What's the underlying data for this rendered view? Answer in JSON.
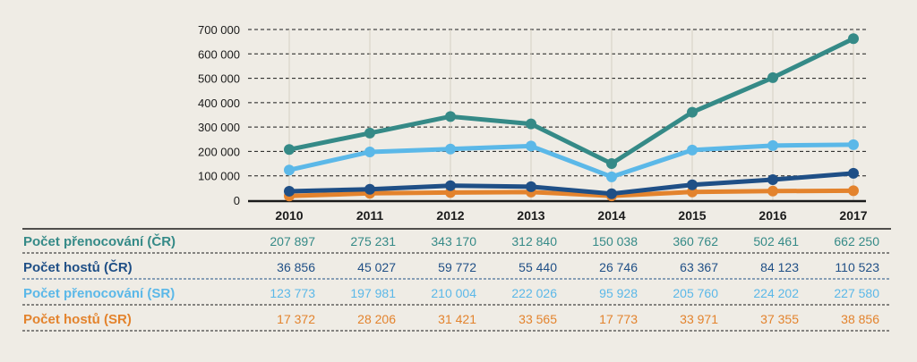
{
  "chart_data": {
    "type": "line",
    "title": "",
    "xlabel": "",
    "ylabel": "",
    "ylim": [
      0,
      700000
    ],
    "yticks": [
      0,
      100000,
      200000,
      300000,
      400000,
      500000,
      600000,
      700000
    ],
    "ytick_labels": [
      "0",
      "100 000",
      "200 000",
      "300 000",
      "400 000",
      "500 000",
      "600 000",
      "700 000"
    ],
    "grid": "horizontal-dashed",
    "categories": [
      "2010",
      "2011",
      "2012",
      "2013",
      "2014",
      "2015",
      "2016",
      "2017"
    ],
    "series": [
      {
        "name": "Počet přenocování (ČR)",
        "color": "#358a87",
        "values": [
          207897,
          275231,
          343170,
          312840,
          150038,
          360762,
          502461,
          662250
        ],
        "labels": [
          "207 897",
          "275 231",
          "343 170",
          "312 840",
          "150 038",
          "360 762",
          "502 461",
          "662 250"
        ]
      },
      {
        "name": "Počet hostů (ČR)",
        "color": "#1f4f86",
        "values": [
          36856,
          45027,
          59772,
          55440,
          26746,
          63367,
          84123,
          110523
        ],
        "labels": [
          "36 856",
          "45 027",
          "59 772",
          "55 440",
          "26 746",
          "63 367",
          "84 123",
          "110 523"
        ]
      },
      {
        "name": "Počet přenocování (SR)",
        "color": "#5bb8e8",
        "values": [
          123773,
          197981,
          210004,
          222026,
          95928,
          205760,
          224202,
          227580
        ],
        "labels": [
          "123 773",
          "197 981",
          "210 004",
          "222 026",
          "95 928",
          "205 760",
          "224 202",
          "227 580"
        ]
      },
      {
        "name": "Počet hostů (SR)",
        "color": "#e3832d",
        "values": [
          17372,
          28206,
          31421,
          33565,
          17773,
          33971,
          37355,
          38856
        ],
        "labels": [
          "17 372",
          "28 206",
          "31 421",
          "33 565",
          "17 773",
          "33 971",
          "37 355",
          "38 856"
        ]
      }
    ],
    "legend": "data-table-below"
  }
}
